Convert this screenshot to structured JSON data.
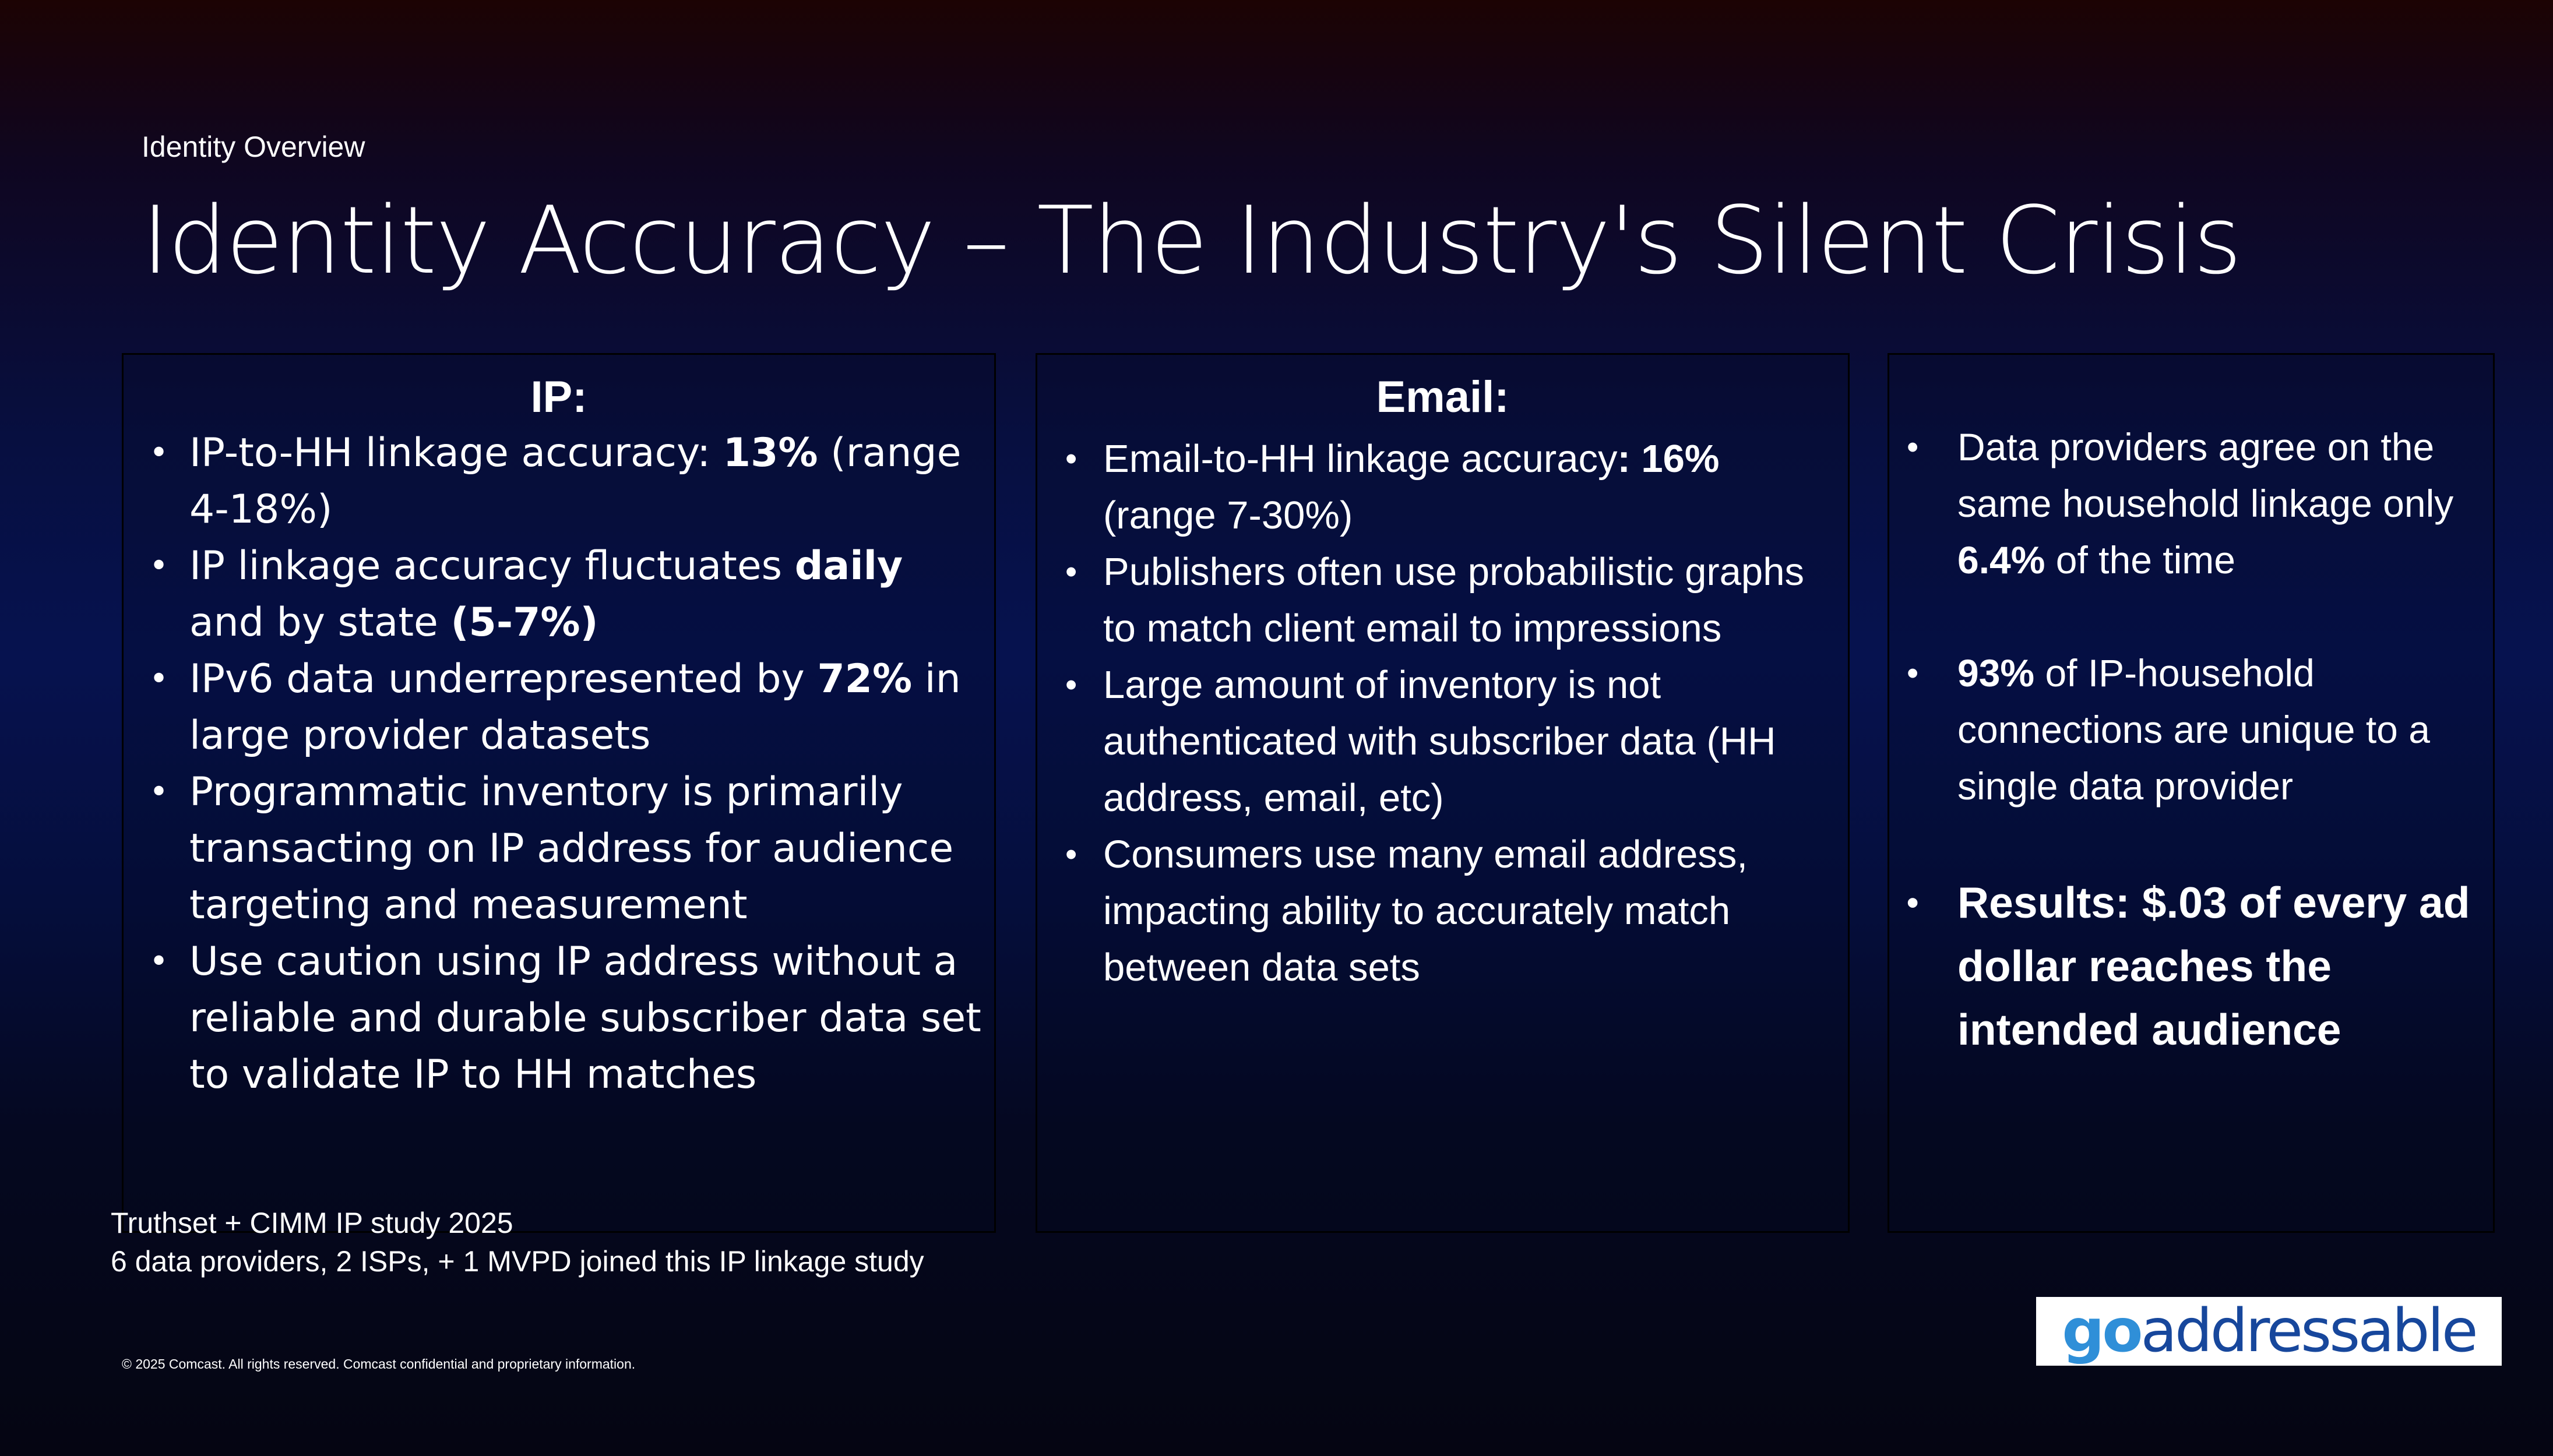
{
  "header": {
    "eyebrow": "Identity Overview",
    "title": "Identity Accuracy – The Industry's Silent Crisis"
  },
  "panels": {
    "ip": {
      "heading": "IP:",
      "items": [
        {
          "a": "IP-to-HH linkage accuracy: ",
          "b": "13%",
          "c": " (range 4-18%)"
        },
        {
          "a": "IP linkage accuracy fluctuates  ",
          "b": "daily",
          "c": " and by state ",
          "d": "(5-7%)"
        },
        {
          "a": "IPv6 data underrepresented by ",
          "b": "72%",
          "c": " in large provider datasets"
        },
        {
          "a": "Programmatic inventory is primarily transacting on IP address for audience targeting and measurement"
        },
        {
          "a": "Use caution using IP address without a reliable and durable subscriber data set to validate IP to HH matches"
        }
      ]
    },
    "email": {
      "heading": "Email:",
      "items": [
        {
          "a": "Email-to-HH linkage accuracy",
          "b": ": 16%",
          "c": " (range 7-30%)"
        },
        {
          "a": "Publishers often use probabilistic graphs to match client email to impressions"
        },
        {
          "a": "Large amount of inventory is not authenticated with subscriber data (HH address, email, etc)"
        },
        {
          "a": "Consumers use many email address, impacting ability to accurately match between data sets"
        }
      ]
    },
    "data": {
      "items": [
        {
          "a": "Data providers agree on the same household linkage only ",
          "b": "6.4%",
          "c": " of the time"
        },
        {
          "a": "93%",
          "b": " of IP-household connections are unique to a single data provider"
        },
        {
          "a": "Results: $.03 of every ad dollar reaches the intended audience"
        }
      ]
    }
  },
  "footer": {
    "source_line1": "Truthset + CIMM IP study 2025",
    "source_line2": "6 data providers, 2 ISPs, + 1 MVPD joined this IP linkage study",
    "copyright": "© 2025 Comcast. All rights reserved. Comcast confidential and proprietary information.",
    "logo_go": "go",
    "logo_rest": "addressable"
  }
}
